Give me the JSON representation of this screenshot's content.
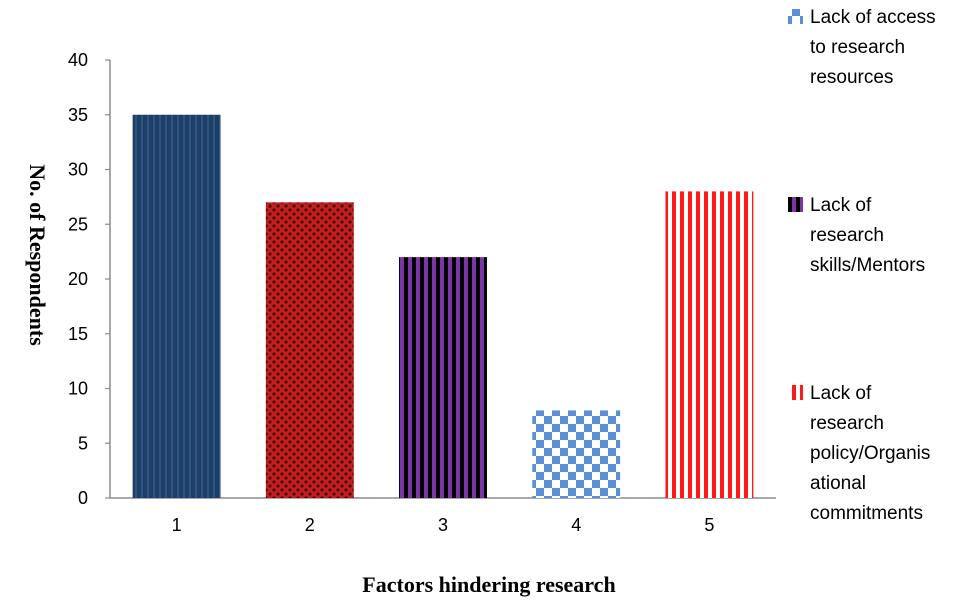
{
  "chart_data": {
    "type": "bar",
    "categories": [
      "1",
      "2",
      "3",
      "4",
      "5"
    ],
    "values": [
      35,
      27,
      22,
      8,
      28
    ],
    "ylim": [
      0,
      40
    ],
    "yticks": [
      0,
      5,
      10,
      15,
      20,
      25,
      30,
      35,
      40
    ],
    "xlabel": "Factors hindering research",
    "ylabel": "No. of Respondents",
    "grid": false,
    "legend_position": "right",
    "bar_colors": [
      "#1f3e66",
      "#b81a1a",
      "#6a2c91",
      "#5b8fd8",
      "#ff2020"
    ],
    "legend": [
      {
        "lines": [
          "Lack of access",
          "to research",
          "resources"
        ],
        "color": "#5b8fd8",
        "icon": "checker-swatch-icon"
      },
      {
        "lines": [
          "Lack of",
          "research",
          "skills/Mentors"
        ],
        "color": "#6a2c91",
        "icon": "stripe-swatch-icon"
      },
      {
        "lines": [
          "Lack of",
          "research",
          "policy/Organis",
          "ational",
          "commitments"
        ],
        "color": "#ff2020",
        "icon": "red-stripe-swatch-icon"
      }
    ]
  }
}
